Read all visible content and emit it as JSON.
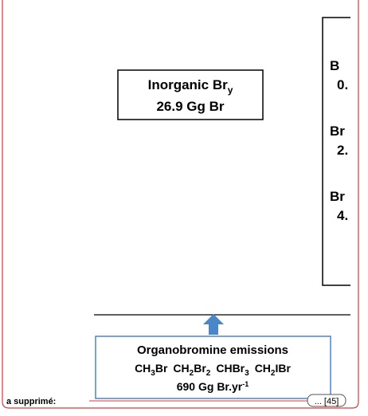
{
  "figure": {
    "inorganic_box": {
      "name": "Inorganic Br",
      "name_sub": "y",
      "amount": "26.9 Gg Br"
    },
    "right_box": {
      "lines": [
        "B",
        "0.",
        "Br",
        "2.",
        "Br",
        "4."
      ]
    },
    "emissions_box": {
      "title": "Organobromine emissions",
      "formulas": [
        [
          "CH",
          "3",
          "Br"
        ],
        [
          "CH",
          "2",
          "Br",
          "2"
        ],
        [
          "CHBr",
          "3"
        ],
        [
          "CH",
          "2",
          "IBr"
        ]
      ],
      "rate": "690 Gg Br.yr",
      "rate_sup": "-1"
    }
  },
  "comment": {
    "label": "a supprimé:",
    "button": "... [45]"
  }
}
